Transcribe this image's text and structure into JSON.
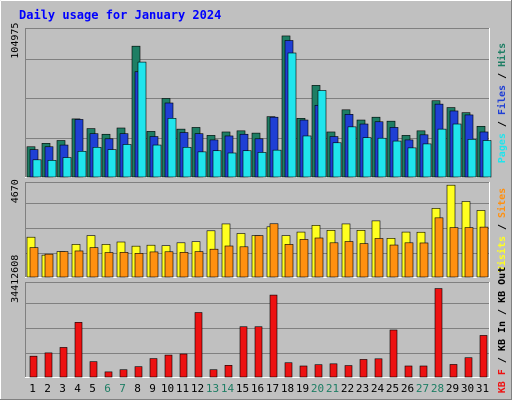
{
  "chart_data": [
    {
      "type": "bar",
      "title": "Daily usage for January 2024",
      "categories": [
        "1",
        "2",
        "3",
        "4",
        "5",
        "6",
        "7",
        "8",
        "9",
        "10",
        "11",
        "12",
        "13",
        "14",
        "15",
        "16",
        "17",
        "18",
        "19",
        "20",
        "21",
        "22",
        "23",
        "24",
        "25",
        "26",
        "27",
        "28",
        "29",
        "30",
        "31"
      ],
      "weekend_days": [
        "6",
        "7",
        "13",
        "14",
        "20",
        "21",
        "27",
        "28"
      ],
      "y_tick_label": "104975",
      "ylim": [
        0,
        132000
      ],
      "legend": [
        "Pages",
        "Files",
        "Hits"
      ],
      "series": [
        {
          "name": "Hits",
          "color": "#1e7e64",
          "values": [
            27500,
            30500,
            33000,
            52000,
            43500,
            38500,
            44000,
            116000,
            41000,
            70000,
            43000,
            44500,
            37500,
            40500,
            41500,
            39500,
            54000,
            125000,
            52500,
            81500,
            40500,
            60000,
            51000,
            53500,
            50000,
            37500,
            41500,
            68000,
            62000,
            57500,
            45500
          ]
        },
        {
          "name": "Files",
          "color": "#1f3fd5",
          "values": [
            25000,
            27500,
            29000,
            51500,
            39000,
            34500,
            39000,
            93500,
            36500,
            66000,
            40000,
            39000,
            33500,
            37000,
            38500,
            34500,
            53500,
            121000,
            51000,
            64000,
            36500,
            56000,
            47500,
            49500,
            44500,
            33500,
            38000,
            65000,
            59000,
            55500,
            40500
          ]
        },
        {
          "name": "Pages",
          "color": "#20e4ec",
          "values": [
            16000,
            15500,
            18000,
            23500,
            27000,
            25000,
            29500,
            102000,
            29000,
            52500,
            27000,
            23000,
            24000,
            22000,
            24000,
            22500,
            24500,
            110000,
            37000,
            77000,
            31000,
            45000,
            35500,
            35000,
            32500,
            26500,
            30000,
            43000,
            47500,
            34000,
            33000
          ]
        }
      ]
    },
    {
      "type": "bar",
      "categories": [
        "1",
        "2",
        "3",
        "4",
        "5",
        "6",
        "7",
        "8",
        "9",
        "10",
        "11",
        "12",
        "13",
        "14",
        "15",
        "16",
        "17",
        "18",
        "19",
        "20",
        "21",
        "22",
        "23",
        "24",
        "25",
        "26",
        "27",
        "28",
        "29",
        "30",
        "31"
      ],
      "y_tick_label": "4670",
      "ylim": [
        0,
        6000
      ],
      "legend": [
        "Visits",
        "Sites"
      ],
      "series": [
        {
          "name": "Visits",
          "color": "#ffff20",
          "values": [
            2550,
            1430,
            1650,
            2100,
            2650,
            2100,
            2250,
            1990,
            2050,
            2020,
            2200,
            2270,
            2950,
            3380,
            2780,
            2650,
            3200,
            2650,
            2870,
            3290,
            2980,
            3380,
            2980,
            3570,
            2480,
            2870,
            2860,
            4350,
            5800,
            4780,
            4220
          ]
        },
        {
          "name": "Sites",
          "color": "#ff9010",
          "values": [
            1900,
            1490,
            1650,
            1690,
            1900,
            1590,
            1600,
            1540,
            1630,
            1640,
            1600,
            1650,
            1800,
            2000,
            1950,
            2650,
            3390,
            2100,
            2410,
            2500,
            2200,
            2280,
            2150,
            2470,
            2060,
            2200,
            2190,
            3760,
            3150,
            3150,
            3180
          ]
        }
      ]
    },
    {
      "type": "bar",
      "categories": [
        "1",
        "2",
        "3",
        "4",
        "5",
        "6",
        "7",
        "8",
        "9",
        "10",
        "11",
        "12",
        "13",
        "14",
        "15",
        "16",
        "17",
        "18",
        "19",
        "20",
        "21",
        "22",
        "23",
        "24",
        "25",
        "26",
        "27",
        "28",
        "29",
        "30",
        "31"
      ],
      "y_tick_label": "34412608",
      "ylim": [
        0,
        44000000
      ],
      "legend": [
        "KB F",
        "KB In",
        "KB Out"
      ],
      "series": [
        {
          "name": "KB F",
          "color": "#ee1111",
          "values": [
            10000000,
            11500000,
            14000000,
            25500000,
            7500000,
            2800000,
            3800000,
            5200000,
            8900000,
            10500000,
            11000000,
            30000000,
            3800000,
            5800000,
            23500000,
            23500000,
            38000000,
            7000000,
            5500000,
            6100000,
            6500000,
            5700000,
            8500000,
            8800000,
            22000000,
            5500000,
            5500000,
            41000000,
            6200000,
            9300000,
            19500000
          ]
        }
      ]
    }
  ]
}
